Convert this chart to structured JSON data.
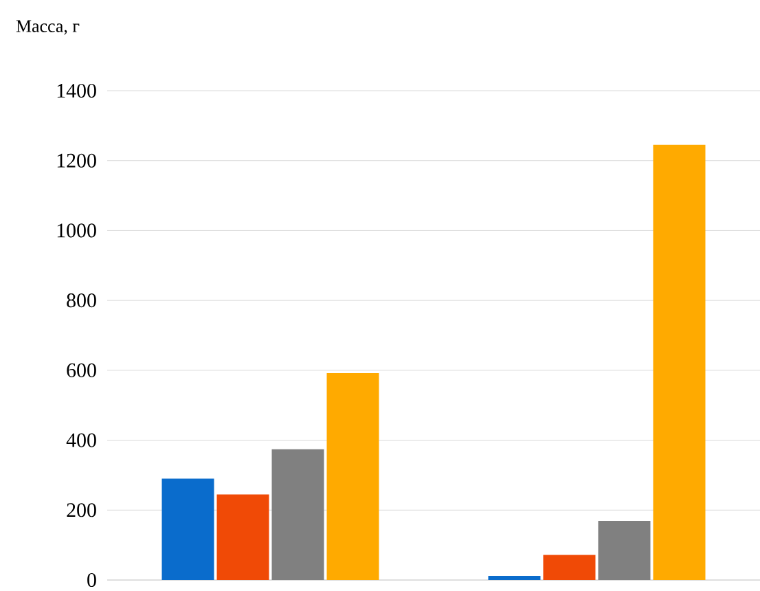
{
  "chart_data": {
    "type": "bar",
    "ylabel": "Масса, г",
    "categories": [
      null,
      null
    ],
    "series": [
      {
        "color": "#0a6ccc",
        "values": [
          290,
          12
        ]
      },
      {
        "color": "#f04a06",
        "values": [
          245,
          72
        ]
      },
      {
        "color": "#808080",
        "values": [
          374,
          169
        ]
      },
      {
        "color": "#ffaa00",
        "values": [
          592,
          1245
        ]
      }
    ],
    "ylim": [
      0,
      1400
    ],
    "yticks": [
      0,
      200,
      400,
      600,
      800,
      1000,
      1200,
      1400
    ],
    "grid": "y"
  }
}
